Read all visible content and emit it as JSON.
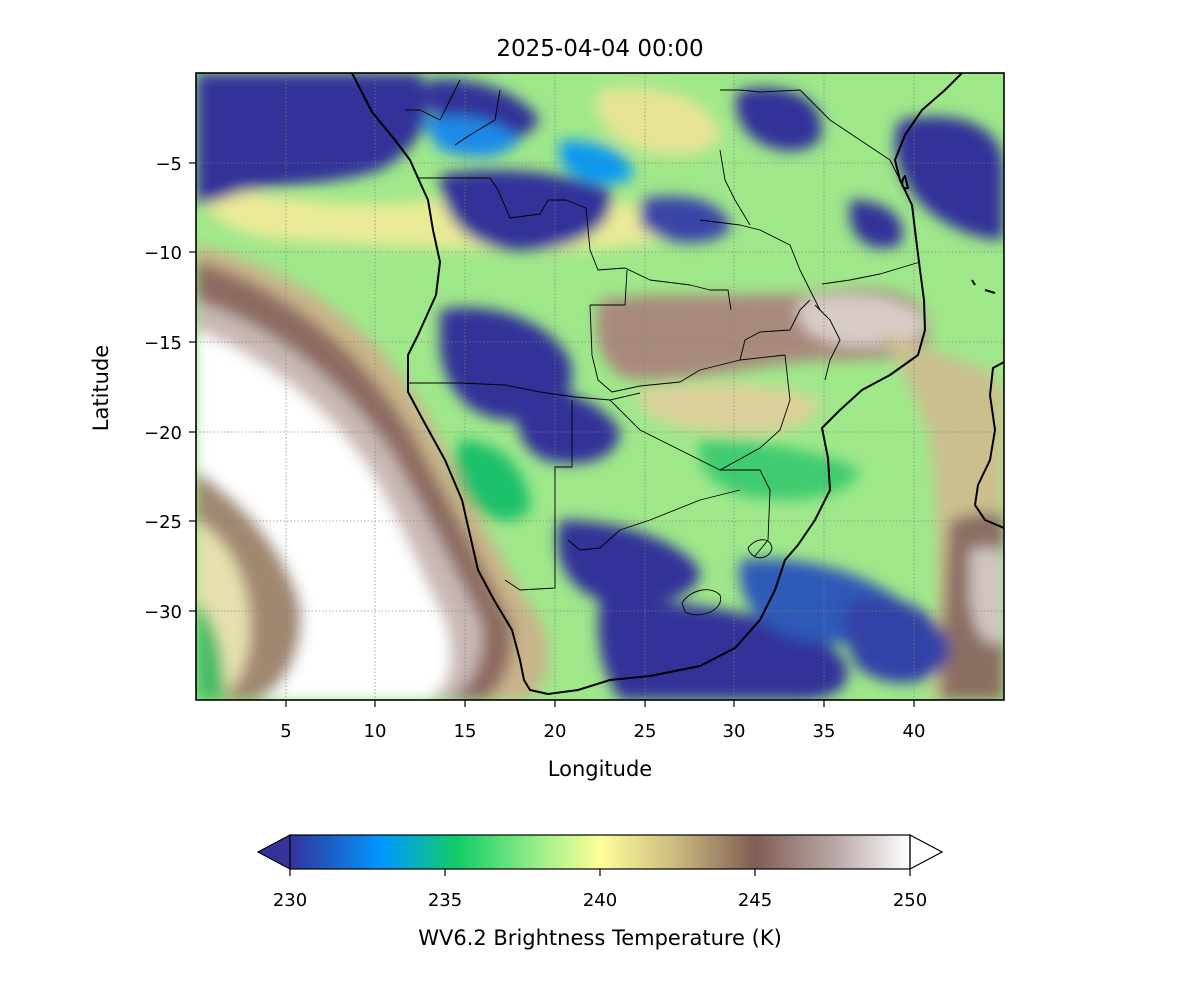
{
  "title": "2025-04-04 00:00",
  "map": {
    "xlabel": "Longitude",
    "ylabel": "Latitude",
    "lon_range": [
      0,
      45
    ],
    "lat_range": [
      -35,
      0
    ],
    "x_ticks": [
      5,
      10,
      15,
      20,
      25,
      30,
      35,
      40
    ],
    "y_ticks": [
      -5,
      -10,
      -15,
      -20,
      -25,
      -30
    ],
    "x_tick_labels": [
      "5",
      "10",
      "15",
      "20",
      "25",
      "30",
      "35",
      "40"
    ],
    "y_tick_labels": [
      "−5",
      "−10",
      "−15",
      "−20",
      "−25",
      "−30"
    ],
    "gridlines": true
  },
  "colorbar": {
    "label": "WV6.2 Brightness Temperature (K)",
    "range": [
      230,
      250
    ],
    "ticks": [
      230,
      235,
      240,
      245,
      250
    ],
    "tick_labels": [
      "230",
      "235",
      "240",
      "245",
      "250"
    ],
    "extend": "both",
    "colormap": "terrain",
    "colors": [
      "#333399",
      "#0099ff",
      "#11cc66",
      "#99ee88",
      "#fefe98",
      "#ccbb80",
      "#805e54",
      "#b8a8a6",
      "#ffffff"
    ]
  }
}
